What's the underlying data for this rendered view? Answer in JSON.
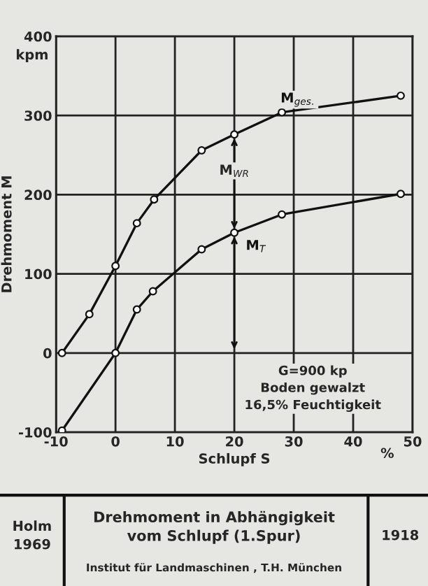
{
  "chart_data": {
    "type": "line",
    "title": "Drehmoment in Abhängigkeit\nvom Schlupf (1.Spur)",
    "xlabel": "Schlupf S",
    "ylabel": "Drehmoment M",
    "series": [
      {
        "name": "M$_{ges.}$",
        "color": "#111111",
        "x": [
          -9,
          -4.4,
          0,
          3.6,
          6.5,
          14.5,
          20,
          28,
          48
        ],
        "values": [
          0,
          49,
          110,
          164,
          194,
          256,
          276,
          304,
          325
        ]
      },
      {
        "name": "M$_{T}$",
        "color": "#111111",
        "x": [
          -9,
          0,
          3.6,
          6.3,
          14.5,
          20,
          28,
          48
        ],
        "values": [
          -98,
          0,
          55,
          78,
          131,
          152,
          175,
          201
        ]
      }
    ],
    "annotations": [
      "kpm",
      "%",
      "G=900 kp\nBoden gewalzt\n16,5% Feuchtigkeit",
      "Holm\n1969",
      "Institut für Landmaschinen , T.H. München",
      "1918",
      {
        "text": "M$_{WR}$",
        "x": 20,
        "y": 230
      }
    ],
    "xlim": [
      -10,
      50
    ],
    "xticks": [
      -10,
      0,
      10,
      20,
      30,
      40,
      50
    ],
    "ylim": [
      -100,
      400
    ],
    "yticks": [
      -100,
      0,
      100,
      200,
      300,
      400
    ],
    "grid": true,
    "marker": "circle",
    "line_style": "solid"
  }
}
